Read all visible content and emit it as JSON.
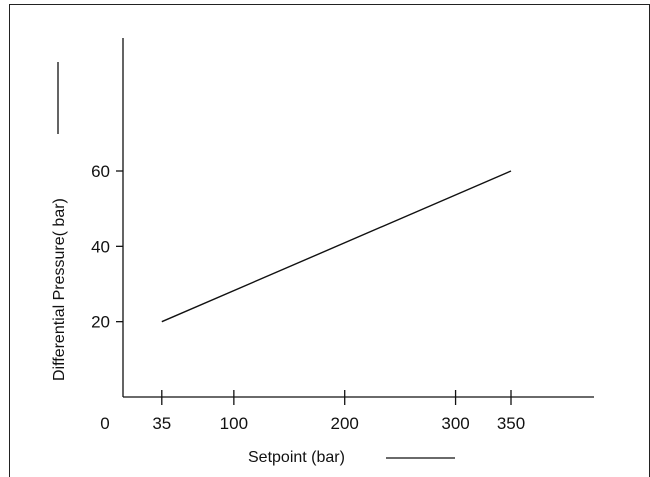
{
  "chart_data": {
    "type": "line",
    "xlabel": "Setpoint (bar)",
    "ylabel": "Differential Pressure( bar)",
    "x_ticks": [
      35,
      100,
      200,
      300,
      350
    ],
    "x_origin_label": "0",
    "y_ticks": [
      20,
      40,
      60
    ],
    "xlim": [
      0,
      400
    ],
    "ylim": [
      0,
      80
    ],
    "grid": false,
    "series": [
      {
        "x": [
          35,
          350
        ],
        "y": [
          20,
          60
        ]
      }
    ]
  }
}
